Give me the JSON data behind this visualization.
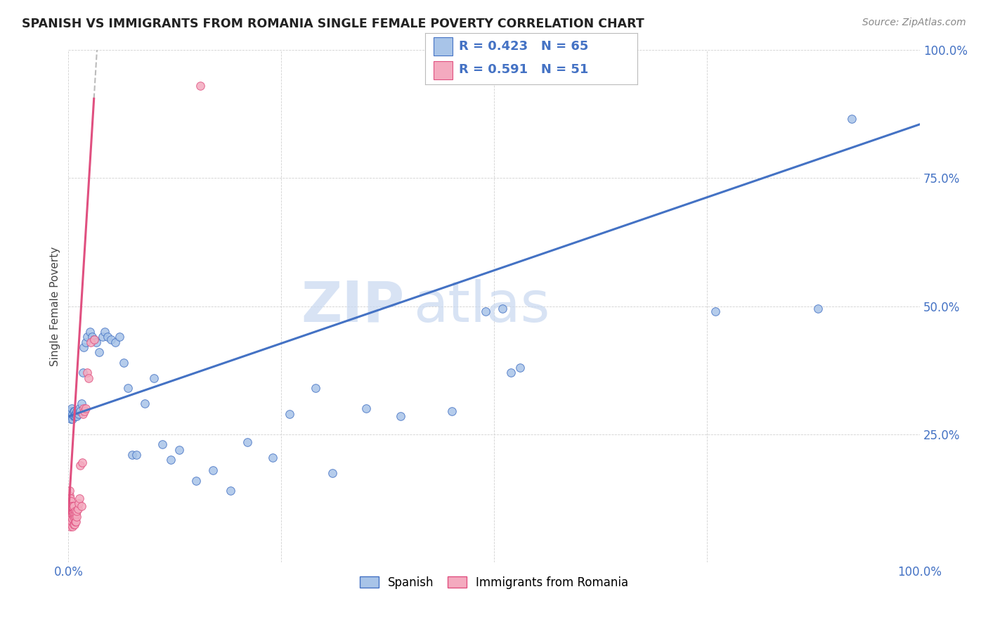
{
  "title": "SPANISH VS IMMIGRANTS FROM ROMANIA SINGLE FEMALE POVERTY CORRELATION CHART",
  "source": "Source: ZipAtlas.com",
  "ylabel": "Single Female Poverty",
  "xlim": [
    0,
    1
  ],
  "ylim": [
    0,
    1
  ],
  "xticks": [
    0,
    0.25,
    0.5,
    0.75,
    1.0
  ],
  "yticks": [
    0,
    0.25,
    0.5,
    0.75,
    1.0
  ],
  "xticklabels": [
    "0.0%",
    "",
    "",
    "",
    "100.0%"
  ],
  "yticklabels": [
    "",
    "25.0%",
    "50.0%",
    "75.0%",
    "100.0%"
  ],
  "r_spanish": 0.423,
  "n_spanish": 65,
  "r_romania": 0.591,
  "n_romania": 51,
  "color_spanish": "#A8C4E8",
  "color_romania": "#F4AABF",
  "trendline_spanish_color": "#4472C4",
  "trendline_romania_color": "#E05080",
  "trendline_dashed_color": "#BBBBBB",
  "watermark_color": "#C8D8F0",
  "spanish_x": [
    0.001,
    0.002,
    0.002,
    0.003,
    0.003,
    0.004,
    0.004,
    0.005,
    0.005,
    0.006,
    0.006,
    0.007,
    0.007,
    0.008,
    0.008,
    0.009,
    0.01,
    0.01,
    0.011,
    0.012,
    0.013,
    0.014,
    0.015,
    0.017,
    0.018,
    0.02,
    0.022,
    0.025,
    0.028,
    0.03,
    0.033,
    0.036,
    0.04,
    0.043,
    0.046,
    0.05,
    0.055,
    0.06,
    0.065,
    0.07,
    0.075,
    0.08,
    0.09,
    0.1,
    0.11,
    0.12,
    0.13,
    0.15,
    0.17,
    0.19,
    0.21,
    0.24,
    0.26,
    0.29,
    0.31,
    0.35,
    0.39,
    0.45,
    0.49,
    0.51,
    0.52,
    0.53,
    0.76,
    0.88,
    0.92
  ],
  "spanish_y": [
    0.29,
    0.285,
    0.295,
    0.28,
    0.295,
    0.285,
    0.3,
    0.28,
    0.29,
    0.285,
    0.295,
    0.285,
    0.295,
    0.285,
    0.29,
    0.29,
    0.295,
    0.285,
    0.295,
    0.29,
    0.3,
    0.295,
    0.31,
    0.37,
    0.42,
    0.43,
    0.44,
    0.45,
    0.44,
    0.435,
    0.43,
    0.41,
    0.44,
    0.45,
    0.44,
    0.435,
    0.43,
    0.44,
    0.39,
    0.34,
    0.21,
    0.21,
    0.31,
    0.36,
    0.23,
    0.2,
    0.22,
    0.16,
    0.18,
    0.14,
    0.235,
    0.205,
    0.29,
    0.34,
    0.175,
    0.3,
    0.285,
    0.295,
    0.49,
    0.495,
    0.37,
    0.38,
    0.49,
    0.495,
    0.865
  ],
  "romania_x": [
    0.001,
    0.001,
    0.001,
    0.001,
    0.001,
    0.001,
    0.002,
    0.002,
    0.002,
    0.002,
    0.002,
    0.003,
    0.003,
    0.003,
    0.003,
    0.004,
    0.004,
    0.004,
    0.005,
    0.005,
    0.005,
    0.005,
    0.006,
    0.006,
    0.006,
    0.006,
    0.007,
    0.007,
    0.007,
    0.008,
    0.008,
    0.008,
    0.009,
    0.009,
    0.01,
    0.01,
    0.011,
    0.012,
    0.013,
    0.014,
    0.015,
    0.016,
    0.017,
    0.018,
    0.019,
    0.02,
    0.022,
    0.024,
    0.026,
    0.03,
    0.155
  ],
  "romania_y": [
    0.08,
    0.095,
    0.105,
    0.115,
    0.13,
    0.14,
    0.07,
    0.085,
    0.1,
    0.115,
    0.125,
    0.075,
    0.09,
    0.105,
    0.12,
    0.08,
    0.095,
    0.11,
    0.07,
    0.085,
    0.095,
    0.11,
    0.075,
    0.09,
    0.095,
    0.11,
    0.075,
    0.085,
    0.095,
    0.08,
    0.09,
    0.1,
    0.08,
    0.095,
    0.09,
    0.1,
    0.105,
    0.115,
    0.125,
    0.19,
    0.11,
    0.195,
    0.29,
    0.3,
    0.295,
    0.3,
    0.37,
    0.36,
    0.43,
    0.435,
    0.93
  ],
  "trendline_spain_x0": 0.0,
  "trendline_spain_x1": 1.0,
  "trendline_spain_y0": 0.285,
  "trendline_spain_y1": 0.855,
  "trendline_romania_solid_x0": 0.0,
  "trendline_romania_solid_x1": 0.03,
  "trendline_romania_dash_x0": 0.03,
  "trendline_romania_dash_x1": 0.195,
  "trendline_romania_y0": 0.095,
  "trendline_romania_slope": 27.0
}
